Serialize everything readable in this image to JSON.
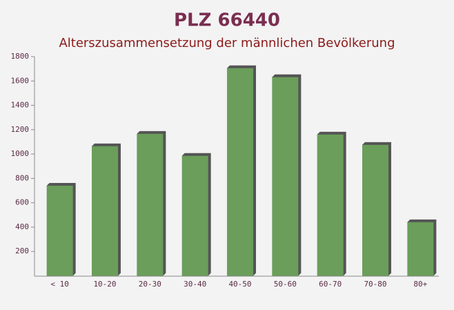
{
  "chart_data": {
    "type": "bar",
    "title": "PLZ 66440",
    "subtitle": "Alterszusammensetzung der männlichen Bevölkerung",
    "categories": [
      "< 10",
      "10-20",
      "20-30",
      "30-40",
      "40-50",
      "50-60",
      "60-70",
      "70-80",
      "80+"
    ],
    "values": [
      740,
      1064,
      1166,
      985,
      1705,
      1631,
      1160,
      1075,
      440
    ],
    "color": "#6a9e5a",
    "ylim": [
      0,
      1800
    ],
    "yticks": [
      200,
      400,
      600,
      800,
      1000,
      1200,
      1400,
      1600,
      1800
    ],
    "grid": false
  }
}
